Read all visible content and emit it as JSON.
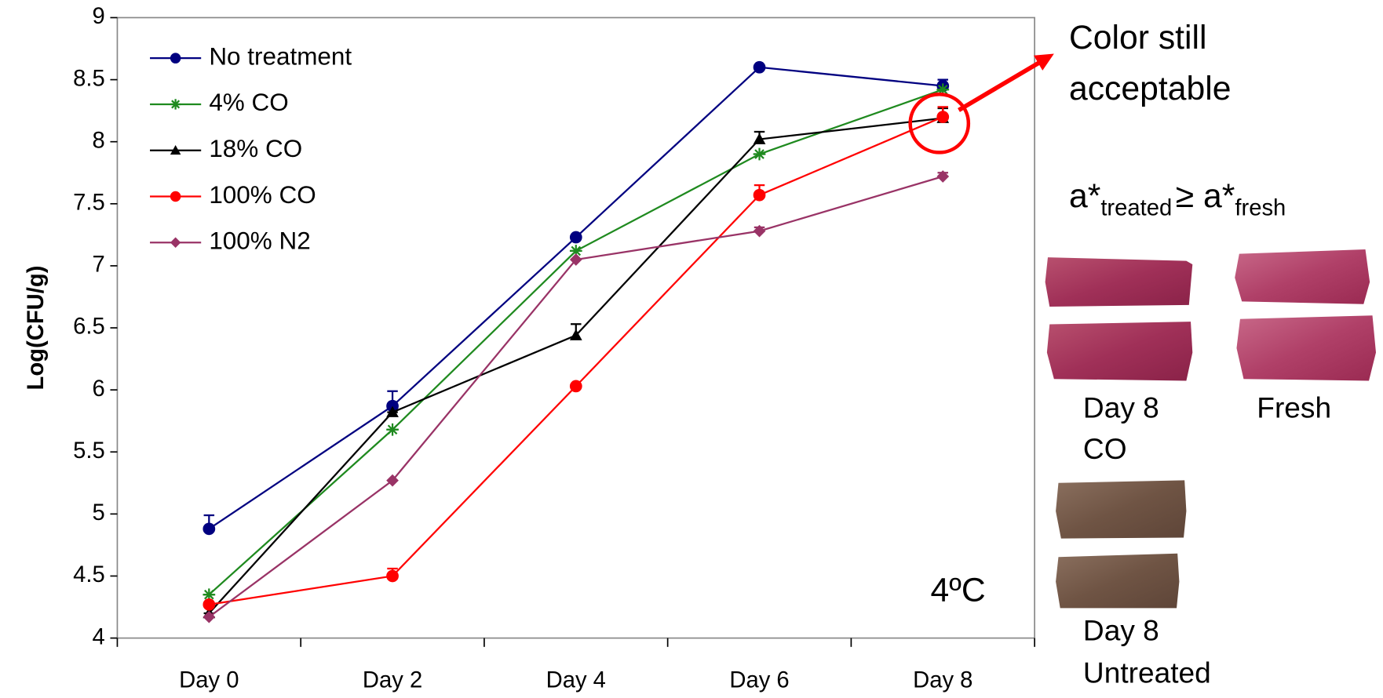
{
  "chart_data": {
    "type": "line",
    "ylabel": "Log(CFU/g)",
    "categories": [
      "Day 0",
      "Day 2",
      "Day 4",
      "Day 6",
      "Day 8"
    ],
    "series": [
      {
        "name": "No treatment",
        "color": "#000080",
        "marker": "circle",
        "values": [
          4.88,
          5.87,
          7.23,
          8.6,
          8.45
        ],
        "errors": [
          0.11,
          0.12,
          0,
          0,
          0.05
        ]
      },
      {
        "name": "4% CO",
        "color": "#1f8a1f",
        "marker": "asterisk",
        "values": [
          4.35,
          5.68,
          7.12,
          7.9,
          8.42
        ],
        "errors": [
          0,
          0,
          0,
          0,
          0
        ]
      },
      {
        "name": "18% CO",
        "color": "#000000",
        "marker": "triangle",
        "values": [
          4.2,
          5.82,
          6.44,
          8.02,
          8.19
        ],
        "errors": [
          0,
          0,
          0.09,
          0.06,
          0.08
        ]
      },
      {
        "name": "100% CO",
        "color": "#ff0000",
        "marker": "circle",
        "values": [
          4.27,
          4.5,
          6.03,
          7.57,
          8.2
        ],
        "errors": [
          0,
          0.06,
          0,
          0.08,
          0.08
        ]
      },
      {
        "name": "100% N2",
        "color": "#993366",
        "marker": "diamond",
        "values": [
          4.17,
          5.27,
          7.05,
          7.28,
          7.72
        ],
        "errors": [
          0,
          0,
          0,
          0.03,
          0.03
        ]
      }
    ],
    "ylim": [
      4,
      9
    ],
    "yticks": [
      4,
      4.5,
      5,
      5.5,
      6,
      6.5,
      7,
      7.5,
      8,
      8.5,
      9
    ],
    "grid": false,
    "legend": "upper left",
    "annotations": {
      "temperature": "4ºC",
      "callout": [
        "Color still",
        "acceptable"
      ],
      "formula": {
        "left": "a*",
        "left_sub": "treated",
        "right": "≥ a*",
        "right_sub": "fresh"
      },
      "photo_labels": [
        [
          "Day 8",
          "CO"
        ],
        [
          "Fresh"
        ],
        [
          "Day 8",
          "Untreated"
        ]
      ]
    }
  }
}
